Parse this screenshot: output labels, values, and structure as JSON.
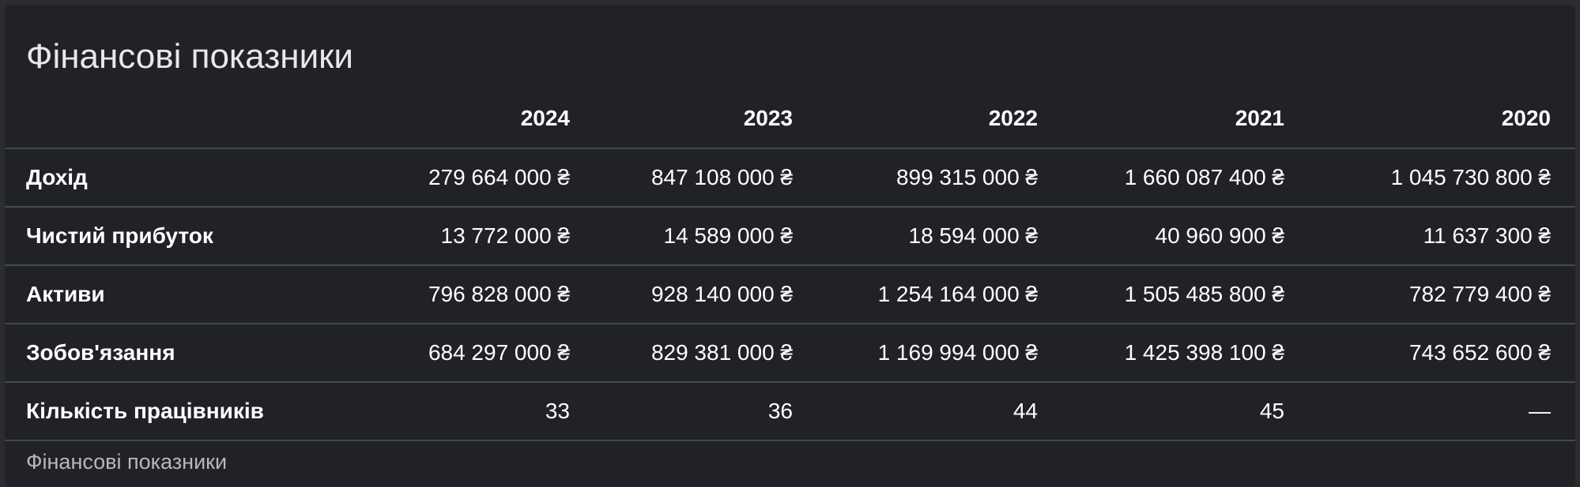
{
  "title": "Фінансові показники",
  "caption": "Фінансові показники",
  "table": {
    "years": [
      "2024",
      "2023",
      "2022",
      "2021",
      "2020"
    ],
    "rows": [
      {
        "label": "Дохід",
        "values": [
          "279 664 000 ₴",
          "847 108 000 ₴",
          "899 315 000 ₴",
          "1 660 087 400 ₴",
          "1 045 730 800 ₴"
        ]
      },
      {
        "label": "Чистий прибуток",
        "values": [
          "13 772 000 ₴",
          "14 589 000 ₴",
          "18 594 000 ₴",
          "40 960 900 ₴",
          "11 637 300 ₴"
        ]
      },
      {
        "label": "Активи",
        "values": [
          "796 828 000 ₴",
          "928 140 000 ₴",
          "1 254 164 000 ₴",
          "1 505 485 800 ₴",
          "782 779 400 ₴"
        ]
      },
      {
        "label": "Зобов'язання",
        "values": [
          "684 297 000 ₴",
          "829 381 000 ₴",
          "1 169 994 000 ₴",
          "1 425 398 100 ₴",
          "743 652 600 ₴"
        ]
      },
      {
        "label": "Кількість працівників",
        "values": [
          "33",
          "36",
          "44",
          "45",
          "—"
        ]
      }
    ]
  }
}
